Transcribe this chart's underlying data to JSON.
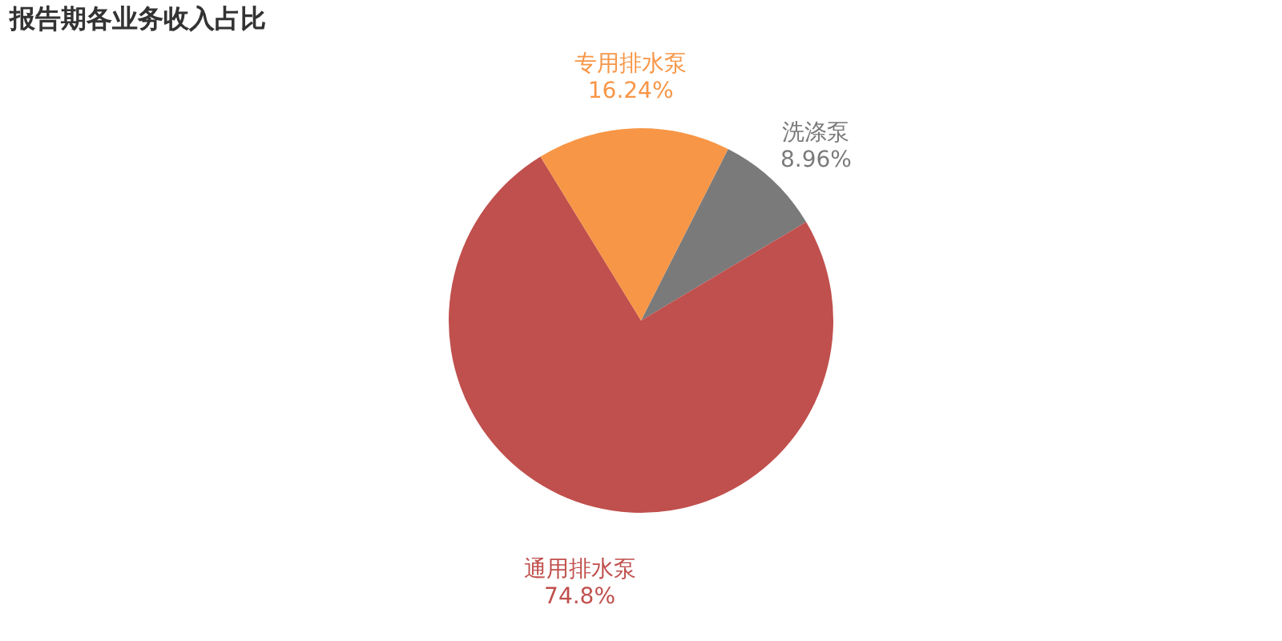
{
  "chart_data": {
    "type": "pie",
    "title": "报告期各业务收入占比",
    "categories": [
      "洗涤泵",
      "通用排水泵",
      "专用排水泵"
    ],
    "values": [
      8.96,
      74.8,
      16.24
    ],
    "colors": [
      "#7a7a7a",
      "#c0504d",
      "#f79646"
    ],
    "value_labels": [
      "8.96%",
      "74.8%",
      "16.24%"
    ],
    "legend": false
  }
}
